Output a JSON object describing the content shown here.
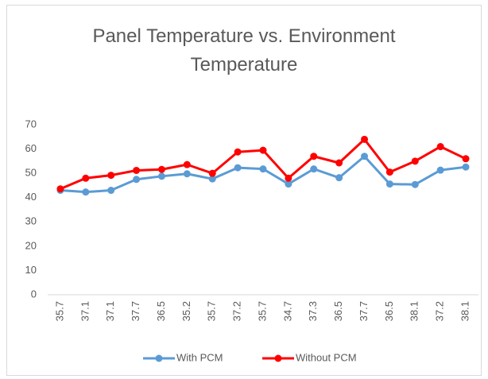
{
  "chart_data": {
    "type": "line",
    "title": "Panel Temperature vs. Environment Temperature",
    "categories": [
      "35.7",
      "37.1",
      "37.1",
      "37.7",
      "36.5",
      "35.2",
      "35.7",
      "37.2",
      "35.7",
      "34.7",
      "37.3",
      "36.5",
      "37.7",
      "36.5",
      "38.1",
      "37.2",
      "38.1"
    ],
    "series": [
      {
        "name": "With PCM",
        "color": "#5b9bd5",
        "values": [
          43,
          42.3,
          43,
          47.5,
          48.8,
          49.8,
          47.7,
          52.3,
          51.8,
          45.6,
          51.8,
          48.2,
          57,
          45.6,
          45.4,
          51.3,
          52.6
        ]
      },
      {
        "name": "Without PCM",
        "color": "#ff0000",
        "values": [
          43.6,
          48,
          49.2,
          51.2,
          51.6,
          53.6,
          50,
          58.8,
          59.5,
          48,
          57,
          54.3,
          64,
          50.5,
          55,
          61,
          56
        ]
      }
    ],
    "ylim": [
      0,
      70
    ],
    "yticks": [
      0,
      10,
      20,
      30,
      40,
      50,
      60,
      70
    ],
    "grid": false,
    "legend": "bottom"
  }
}
